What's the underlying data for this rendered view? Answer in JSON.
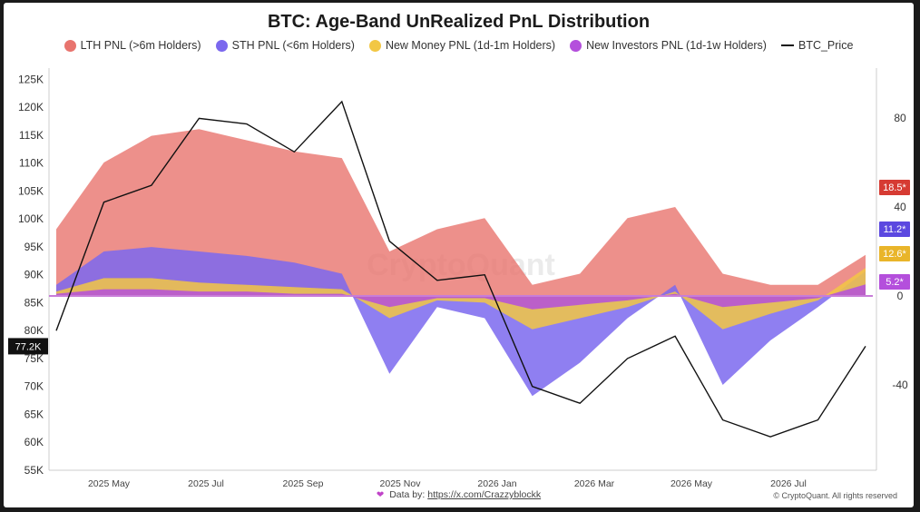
{
  "chart_data": {
    "type": "area",
    "title": "BTC: Age-Band UnRealized PnL Distribution",
    "x": [
      "2025-04",
      "2025-05",
      "2025-06",
      "2025-07",
      "2025-08",
      "2025-09",
      "2025-10",
      "2025-11",
      "2025-12",
      "2026-01",
      "2026-02",
      "2026-03",
      "2026-04",
      "2026-05",
      "2026-06",
      "2026-07",
      "2026-08",
      "2026-09"
    ],
    "x_tick_labels": [
      "2025 May",
      "2025 Jul",
      "2025 Sep",
      "2025 Nov",
      "2026 Jan",
      "2026 Mar",
      "2026 May",
      "2026 Jul"
    ],
    "y_left_ticks": [
      "125K",
      "120K",
      "115K",
      "110K",
      "105K",
      "100K",
      "95K",
      "90K",
      "85K",
      "80K",
      "75K",
      "70K",
      "65K",
      "60K",
      "55K"
    ],
    "y_right_ticks": [
      "80",
      "40",
      "0",
      "-40"
    ],
    "ylim_left": [
      55000,
      127000
    ],
    "ylim_right": [
      -60,
      100
    ],
    "series": [
      {
        "name": "LTH PNL (>6m Holders)",
        "color": "#e8746e",
        "values": [
          30,
          60,
          72,
          75,
          70,
          65,
          62,
          20,
          30,
          35,
          5,
          10,
          35,
          40,
          10,
          5,
          5,
          18.5
        ]
      },
      {
        "name": "STH PNL (<6m Holders)",
        "color": "#7b68ee",
        "values": [
          5,
          20,
          22,
          20,
          18,
          15,
          10,
          -35,
          -5,
          -10,
          -45,
          -30,
          -10,
          5,
          -40,
          -20,
          -5,
          11.2
        ]
      },
      {
        "name": "New Money PNL (1d-1m Holders)",
        "color": "#f2c744",
        "values": [
          2,
          8,
          8,
          6,
          5,
          4,
          3,
          -10,
          -2,
          -3,
          -15,
          -10,
          -5,
          2,
          -15,
          -8,
          -2,
          12.6
        ]
      },
      {
        "name": "New Investors PNL (1d-1w Holders)",
        "color": "#b44fdc",
        "values": [
          1,
          3,
          3,
          2,
          2,
          1,
          1,
          -5,
          -1,
          -1,
          -6,
          -4,
          -2,
          1,
          -5,
          -3,
          -1,
          5.2
        ]
      },
      {
        "name": "BTC_Price",
        "color": "#111111",
        "values": [
          80000,
          103000,
          106000,
          118000,
          117000,
          112000,
          121000,
          96000,
          89000,
          90000,
          70000,
          67000,
          75000,
          79000,
          64000,
          61000,
          64000,
          77200
        ]
      }
    ],
    "end_labels": {
      "price": "77.2K",
      "lth": "18.5*",
      "sth": "11.2*",
      "new_money": "12.6*",
      "new_investors": "5.2*"
    },
    "watermark": "CryptoQuant",
    "grid": false,
    "legend_position": "top"
  },
  "footer": {
    "data_prefix": "Data by:",
    "data_link": "https://x.com/Crazzyblockk",
    "copyright": "© CryptoQuant. All rights reserved"
  }
}
